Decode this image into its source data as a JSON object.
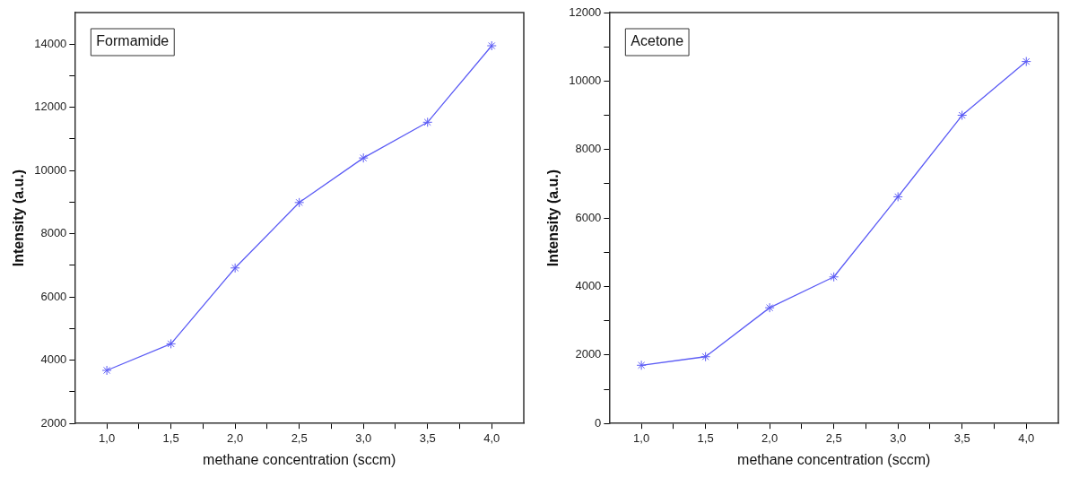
{
  "chart_data": [
    {
      "type": "line",
      "annotations": [
        "Formamide"
      ],
      "xlabel": "methane concentration (sccm)",
      "ylabel": "Intensity (a.u.)",
      "x": [
        1.0,
        1.5,
        2.0,
        2.5,
        3.0,
        3.5,
        4.0
      ],
      "marker": "cross",
      "line_style": "solid",
      "series": [
        {
          "color": "#5c5cf5",
          "values": [
            3680,
            4520,
            6920,
            8990,
            10400,
            11530,
            13950
          ]
        }
      ],
      "xlim": [
        0.75,
        4.25
      ],
      "ylim": [
        2000,
        15000
      ],
      "xticks": [
        {
          "value": 1,
          "label": "1,0"
        },
        {
          "value": 1.25,
          "label": null
        },
        {
          "value": 1.5,
          "label": "1,5"
        },
        {
          "value": 1.75,
          "label": null
        },
        {
          "value": 2,
          "label": "2,0"
        },
        {
          "value": 2.25,
          "label": null
        },
        {
          "value": 2.5,
          "label": "2,5"
        },
        {
          "value": 2.75,
          "label": null
        },
        {
          "value": 3,
          "label": "3,0"
        },
        {
          "value": 3.25,
          "label": null
        },
        {
          "value": 3.5,
          "label": "3,5"
        },
        {
          "value": 3.75,
          "label": null
        },
        {
          "value": 4,
          "label": "4,0"
        }
      ],
      "yticks": [
        2000,
        {
          "value": 3000,
          "label": null
        },
        4000,
        {
          "value": 5000,
          "label": null
        },
        6000,
        {
          "value": 7000,
          "label": null
        },
        8000,
        {
          "value": 9000,
          "label": null
        },
        10000,
        {
          "value": 11000,
          "label": null
        },
        12000,
        {
          "value": 13000,
          "label": null
        },
        14000
      ]
    },
    {
      "type": "line",
      "annotations": [
        "Acetone"
      ],
      "xlabel": "methane concentration (sccm)",
      "ylabel": "Intensity (a.u.)",
      "x": [
        1.0,
        1.5,
        2.0,
        2.5,
        3.0,
        3.5,
        4.0
      ],
      "marker": "cross",
      "line_style": "solid",
      "series": [
        {
          "color": "#5c5cf5",
          "values": [
            1700,
            1950,
            3380,
            4280,
            6620,
            9000,
            10570
          ]
        }
      ],
      "xlim": [
        0.75,
        4.25
      ],
      "ylim": [
        0,
        12000
      ],
      "xticks": [
        {
          "value": 1,
          "label": "1,0"
        },
        {
          "value": 1.25,
          "label": null
        },
        {
          "value": 1.5,
          "label": "1,5"
        },
        {
          "value": 1.75,
          "label": null
        },
        {
          "value": 2,
          "label": "2,0"
        },
        {
          "value": 2.25,
          "label": null
        },
        {
          "value": 2.5,
          "label": "2,5"
        },
        {
          "value": 2.75,
          "label": null
        },
        {
          "value": 3,
          "label": "3,0"
        },
        {
          "value": 3.25,
          "label": null
        },
        {
          "value": 3.5,
          "label": "3,5"
        },
        {
          "value": 3.75,
          "label": null
        },
        {
          "value": 4,
          "label": "4,0"
        }
      ],
      "yticks": [
        0,
        {
          "value": 1000,
          "label": null
        },
        2000,
        {
          "value": 3000,
          "label": null
        },
        4000,
        {
          "value": 5000,
          "label": null
        },
        6000,
        {
          "value": 7000,
          "label": null
        },
        8000,
        {
          "value": 9000,
          "label": null
        },
        10000,
        {
          "value": 11000,
          "label": null
        },
        12000
      ]
    }
  ]
}
